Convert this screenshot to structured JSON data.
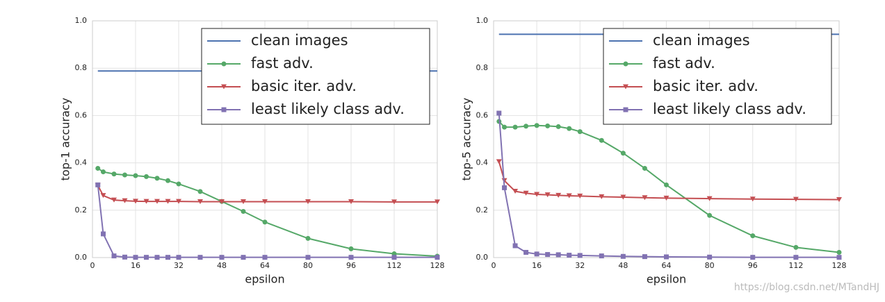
{
  "chart_data": [
    {
      "type": "line",
      "xlabel": "epsilon",
      "ylabel": "top-1 accuracy",
      "xlim": [
        0,
        128
      ],
      "ylim": [
        0,
        1
      ],
      "xticks": [
        0,
        16,
        32,
        48,
        64,
        80,
        96,
        112,
        128
      ],
      "yticks": [
        {
          "value": 0,
          "label": "0.0"
        },
        0.2,
        0.4,
        0.6,
        0.8,
        {
          "value": 1,
          "label": "1.0"
        }
      ],
      "grid": true,
      "legend": "upper right",
      "series": [
        {
          "name": "clean images",
          "color": "#4c72b0",
          "marker": "none",
          "x": [
            2,
            128
          ],
          "values": [
            0.788,
            0.788
          ]
        },
        {
          "name": "fast adv.",
          "color": "#55a868",
          "marker": "circle",
          "x": [
            2,
            4,
            8,
            12,
            16,
            20,
            24,
            28,
            32,
            40,
            48,
            56,
            64,
            80,
            96,
            112,
            128
          ],
          "values": [
            0.377,
            0.362,
            0.353,
            0.349,
            0.346,
            0.342,
            0.335,
            0.325,
            0.311,
            0.279,
            0.237,
            0.195,
            0.15,
            0.081,
            0.037,
            0.016,
            0.006
          ]
        },
        {
          "name": "basic iter. adv.",
          "color": "#c44e52",
          "marker": "triangle-down",
          "x": [
            2,
            4,
            8,
            12,
            16,
            20,
            24,
            28,
            32,
            40,
            48,
            56,
            64,
            80,
            96,
            112,
            128
          ],
          "values": [
            0.305,
            0.262,
            0.243,
            0.24,
            0.238,
            0.237,
            0.237,
            0.237,
            0.237,
            0.236,
            0.236,
            0.236,
            0.236,
            0.236,
            0.236,
            0.235,
            0.235
          ]
        },
        {
          "name": "least likely class adv.",
          "color": "#8172b2",
          "marker": "square",
          "x": [
            2,
            4,
            8,
            12,
            16,
            20,
            24,
            28,
            32,
            40,
            48,
            56,
            64,
            80,
            96,
            112,
            128
          ],
          "values": [
            0.307,
            0.1,
            0.007,
            0.002,
            0.001,
            0.001,
            0.001,
            0.001,
            0.001,
            0.001,
            0.001,
            0.001,
            0.001,
            0.001,
            0.001,
            0.001,
            0.001
          ]
        }
      ]
    },
    {
      "type": "line",
      "xlabel": "epsilon",
      "ylabel": "top-5 accuracy",
      "xlim": [
        0,
        128
      ],
      "ylim": [
        0,
        1
      ],
      "xticks": [
        0,
        16,
        32,
        48,
        64,
        80,
        96,
        112,
        128
      ],
      "yticks": [
        {
          "value": 0,
          "label": "0.0"
        },
        0.2,
        0.4,
        0.6,
        0.8,
        {
          "value": 1,
          "label": "1.0"
        }
      ],
      "grid": true,
      "legend": "upper right",
      "series": [
        {
          "name": "clean images",
          "color": "#4c72b0",
          "marker": "none",
          "x": [
            2,
            128
          ],
          "values": [
            0.943,
            0.943
          ]
        },
        {
          "name": "fast adv.",
          "color": "#55a868",
          "marker": "circle",
          "x": [
            2,
            4,
            8,
            12,
            16,
            20,
            24,
            28,
            32,
            40,
            48,
            56,
            64,
            80,
            96,
            112,
            128
          ],
          "values": [
            0.575,
            0.551,
            0.551,
            0.555,
            0.558,
            0.556,
            0.553,
            0.545,
            0.532,
            0.495,
            0.441,
            0.377,
            0.307,
            0.178,
            0.092,
            0.043,
            0.022
          ]
        },
        {
          "name": "basic iter. adv.",
          "color": "#c44e52",
          "marker": "triangle-down",
          "x": [
            2,
            4,
            8,
            12,
            16,
            20,
            24,
            28,
            32,
            40,
            48,
            56,
            64,
            80,
            96,
            112,
            128
          ],
          "values": [
            0.405,
            0.325,
            0.28,
            0.272,
            0.267,
            0.265,
            0.263,
            0.261,
            0.26,
            0.257,
            0.255,
            0.253,
            0.251,
            0.249,
            0.247,
            0.246,
            0.245
          ]
        },
        {
          "name": "least likely class adv.",
          "color": "#8172b2",
          "marker": "square",
          "x": [
            2,
            4,
            8,
            12,
            16,
            20,
            24,
            28,
            32,
            40,
            48,
            56,
            64,
            80,
            96,
            112,
            128
          ],
          "values": [
            0.61,
            0.295,
            0.05,
            0.022,
            0.015,
            0.013,
            0.012,
            0.01,
            0.009,
            0.007,
            0.005,
            0.004,
            0.003,
            0.002,
            0.001,
            0.001,
            0.001
          ]
        }
      ]
    }
  ],
  "watermark": "https://blog.csdn.net/MTandHJ"
}
